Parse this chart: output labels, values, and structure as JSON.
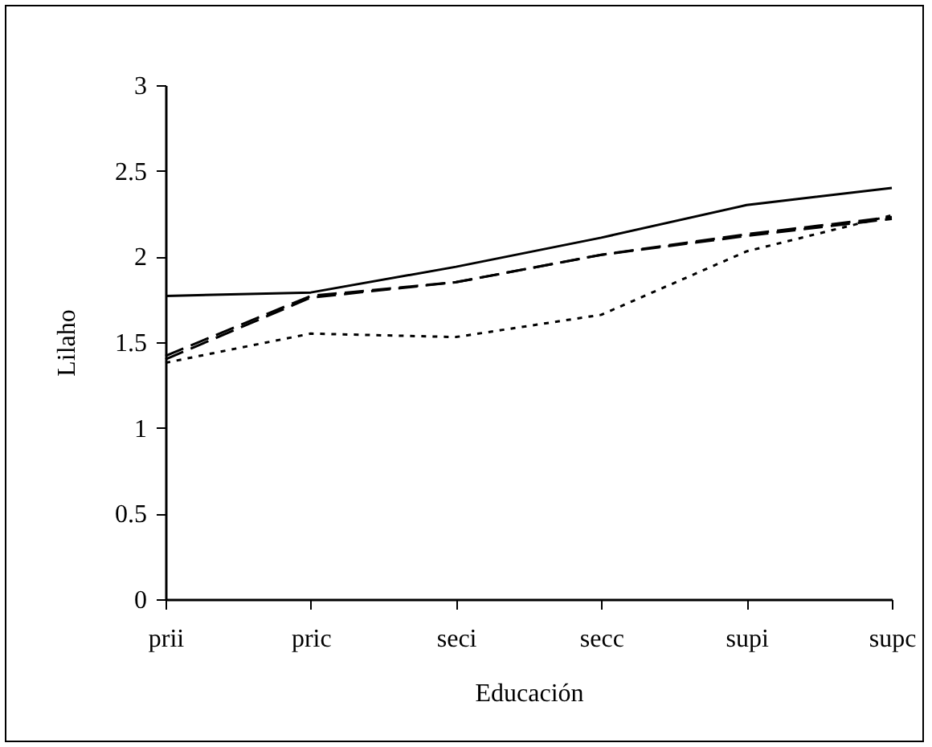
{
  "chart_data": {
    "type": "line",
    "xlabel": "Educación",
    "ylabel": "Lilaho",
    "categories": [
      "prii",
      "pric",
      "seci",
      "secc",
      "supi",
      "supc"
    ],
    "ylim": [
      0,
      3
    ],
    "yticks": [
      0,
      0.5,
      1,
      1.5,
      2,
      2.5,
      3
    ],
    "grid": false,
    "marker": "none",
    "series": [
      {
        "color": "#000000",
        "line_style": "solid",
        "values": [
          1.77,
          1.79,
          1.94,
          2.11,
          2.3,
          2.4
        ]
      },
      {
        "color": "#000000",
        "line_style": "dashed",
        "values": [
          1.42,
          1.77,
          1.85,
          2.01,
          2.13,
          2.23
        ]
      },
      {
        "color": "#000000",
        "line_style": "dashed",
        "values": [
          1.4,
          1.76,
          1.85,
          2.01,
          2.12,
          2.22
        ]
      },
      {
        "color": "#000000",
        "line_style": "dotted",
        "values": [
          1.38,
          1.55,
          1.53,
          1.66,
          2.03,
          2.24
        ]
      }
    ]
  }
}
